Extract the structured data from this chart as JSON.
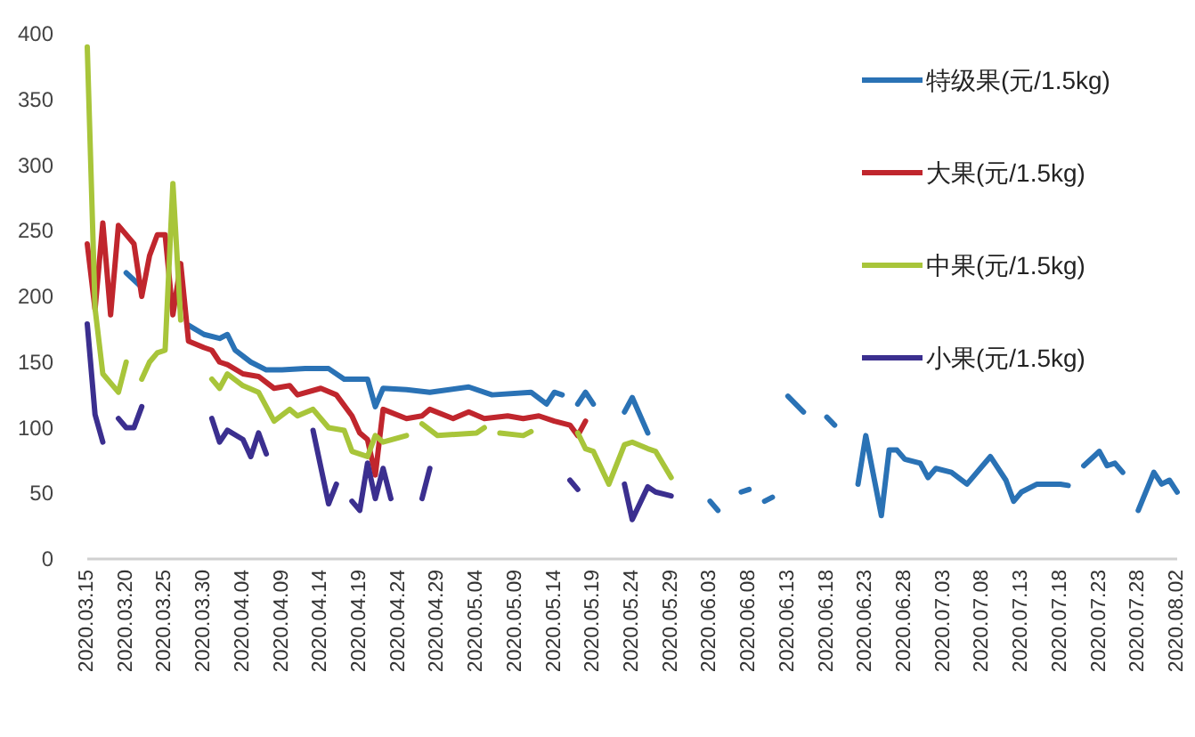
{
  "chart_data": {
    "type": "line",
    "xlim": [
      "2020-03-15",
      "2020-08-02"
    ],
    "xticks": [
      {
        "value": "2020-03-15",
        "label": "2020.03.15"
      },
      {
        "value": "2020-03-20",
        "label": "2020.03.20"
      },
      {
        "value": "2020-03-25",
        "label": "2020.03.25"
      },
      {
        "value": "2020-03-30",
        "label": "2020.03.30"
      },
      {
        "value": "2020-04-04",
        "label": "2020.04.04"
      },
      {
        "value": "2020-04-09",
        "label": "2020.04.09"
      },
      {
        "value": "2020-04-14",
        "label": "2020.04.14"
      },
      {
        "value": "2020-04-19",
        "label": "2020.04.19"
      },
      {
        "value": "2020-04-24",
        "label": "2020.04.24"
      },
      {
        "value": "2020-04-29",
        "label": "2020.04.29"
      },
      {
        "value": "2020-05-04",
        "label": "2020.05.04"
      },
      {
        "value": "2020-05-09",
        "label": "2020.05.09"
      },
      {
        "value": "2020-05-14",
        "label": "2020.05.14"
      },
      {
        "value": "2020-05-19",
        "label": "2020.05.19"
      },
      {
        "value": "2020-05-24",
        "label": "2020.05.24"
      },
      {
        "value": "2020-05-29",
        "label": "2020.05.29"
      },
      {
        "value": "2020-06-03",
        "label": "2020.06.03"
      },
      {
        "value": "2020-06-08",
        "label": "2020.06.08"
      },
      {
        "value": "2020-06-13",
        "label": "2020.06.13"
      },
      {
        "value": "2020-06-18",
        "label": "2020.06.18"
      },
      {
        "value": "2020-06-23",
        "label": "2020.06.23"
      },
      {
        "value": "2020-06-28",
        "label": "2020.06.28"
      },
      {
        "value": "2020-07-03",
        "label": "2020.07.03"
      },
      {
        "value": "2020-07-08",
        "label": "2020.07.08"
      },
      {
        "value": "2020-07-13",
        "label": "2020.07.13"
      },
      {
        "value": "2020-07-18",
        "label": "2020.07.18"
      },
      {
        "value": "2020-07-23",
        "label": "2020.07.23"
      },
      {
        "value": "2020-07-28",
        "label": "2020.07.28"
      },
      {
        "value": "2020-08-02",
        "label": "2020.08.02"
      }
    ],
    "ylim": [
      0,
      400
    ],
    "yticks": [
      0,
      50,
      100,
      150,
      200,
      250,
      300,
      350,
      400
    ],
    "legend": "top right",
    "series": [
      {
        "name": "特级果(元/1.5kg)",
        "color": "#2a72b5",
        "x": [
          "2020-03-20",
          "2020-03-22",
          "2020-03-25",
          "2020-03-28",
          "2020-03-30",
          "2020-04-01",
          "2020-04-02",
          "2020-04-03",
          "2020-04-05",
          "2020-04-07",
          "2020-04-09",
          "2020-04-12",
          "2020-04-15",
          "2020-04-17",
          "2020-04-20",
          "2020-04-21",
          "2020-04-22",
          "2020-04-25",
          "2020-04-28",
          "2020-05-03",
          "2020-05-06",
          "2020-05-11",
          "2020-05-13",
          "2020-05-14",
          "2020-05-15",
          "2020-05-16",
          "2020-05-17",
          "2020-05-18",
          "2020-05-19",
          "2020-05-21",
          "2020-05-23",
          "2020-05-24",
          "2020-05-26",
          "2020-05-30",
          "2020-06-03",
          "2020-06-04",
          "2020-06-05",
          "2020-06-07",
          "2020-06-08",
          "2020-06-09",
          "2020-06-10",
          "2020-06-11",
          "2020-06-12",
          "2020-06-13",
          "2020-06-15",
          "2020-06-16",
          "2020-06-18",
          "2020-06-19",
          "2020-06-21",
          "2020-06-22",
          "2020-06-23",
          "2020-06-25",
          "2020-06-26",
          "2020-06-27",
          "2020-06-28",
          "2020-06-30",
          "2020-07-01",
          "2020-07-02",
          "2020-07-04",
          "2020-07-06",
          "2020-07-08",
          "2020-07-09",
          "2020-07-11",
          "2020-07-12",
          "2020-07-13",
          "2020-07-15",
          "2020-07-18",
          "2020-07-19",
          "2020-07-20",
          "2020-07-21",
          "2020-07-23",
          "2020-07-24",
          "2020-07-25",
          "2020-07-26",
          "2020-07-27",
          "2020-07-28",
          "2020-07-30",
          "2020-07-31",
          "2020-08-01",
          "2020-08-02"
        ],
        "values": [
          218,
          207,
          null,
          178,
          171,
          168,
          171,
          159,
          150,
          144,
          144,
          145,
          145,
          137,
          137,
          116,
          130,
          129,
          127,
          131,
          125,
          127,
          118,
          127,
          125,
          null,
          118,
          127,
          118,
          null,
          112,
          123,
          96,
          null,
          44,
          37,
          null,
          51,
          53,
          null,
          44,
          47,
          null,
          124,
          112,
          null,
          108,
          102,
          null,
          57,
          94,
          33,
          83,
          83,
          76,
          73,
          62,
          69,
          66,
          57,
          71,
          78,
          60,
          44,
          51,
          57,
          57,
          56,
          null,
          71,
          82,
          71,
          73,
          66,
          null,
          37,
          66,
          57,
          60,
          51
        ]
      },
      {
        "name": "大果(元/1.5kg)",
        "color": "#c0262d",
        "x": [
          "2020-03-15",
          "2020-03-16",
          "2020-03-17",
          "2020-03-18",
          "2020-03-19",
          "2020-03-20",
          "2020-03-21",
          "2020-03-22",
          "2020-03-23",
          "2020-03-24",
          "2020-03-25",
          "2020-03-26",
          "2020-03-27",
          "2020-03-28",
          "2020-03-30",
          "2020-03-31",
          "2020-04-01",
          "2020-04-02",
          "2020-04-04",
          "2020-04-06",
          "2020-04-08",
          "2020-04-10",
          "2020-04-11",
          "2020-04-14",
          "2020-04-16",
          "2020-04-18",
          "2020-04-19",
          "2020-04-20",
          "2020-04-21",
          "2020-04-22",
          "2020-04-25",
          "2020-04-27",
          "2020-04-28",
          "2020-05-01",
          "2020-05-03",
          "2020-05-05",
          "2020-05-08",
          "2020-05-10",
          "2020-05-12",
          "2020-05-14",
          "2020-05-16",
          "2020-05-17",
          "2020-05-18"
        ],
        "values": [
          240,
          190,
          256,
          186,
          254,
          247,
          240,
          200,
          231,
          247,
          247,
          186,
          225,
          166,
          161,
          159,
          150,
          148,
          141,
          139,
          130,
          132,
          125,
          130,
          125,
          109,
          96,
          91,
          64,
          114,
          107,
          109,
          114,
          107,
          112,
          107,
          109,
          107,
          109,
          105,
          102,
          94,
          105
        ]
      },
      {
        "name": "中果(元/1.5kg)",
        "color": "#a8c53a",
        "x": [
          "2020-03-15",
          "2020-03-16",
          "2020-03-17",
          "2020-03-19",
          "2020-03-20",
          "2020-03-21",
          "2020-03-22",
          "2020-03-23",
          "2020-03-24",
          "2020-03-25",
          "2020-03-26",
          "2020-03-27",
          "2020-03-29",
          "2020-03-31",
          "2020-04-01",
          "2020-04-02",
          "2020-04-04",
          "2020-04-06",
          "2020-04-08",
          "2020-04-10",
          "2020-04-11",
          "2020-04-13",
          "2020-04-15",
          "2020-04-17",
          "2020-04-18",
          "2020-04-20",
          "2020-04-21",
          "2020-04-22",
          "2020-04-25",
          "2020-04-26",
          "2020-04-27",
          "2020-04-29",
          "2020-05-04",
          "2020-05-05",
          "2020-05-06",
          "2020-05-07",
          "2020-05-10",
          "2020-05-11",
          "2020-05-14",
          "2020-05-17",
          "2020-05-18",
          "2020-05-19",
          "2020-05-21",
          "2020-05-23",
          "2020-05-24",
          "2020-05-26",
          "2020-05-27",
          "2020-05-29"
        ],
        "values": [
          390,
          191,
          141,
          127,
          150,
          null,
          137,
          150,
          157,
          159,
          286,
          182,
          null,
          137,
          130,
          141,
          132,
          127,
          105,
          114,
          109,
          114,
          100,
          98,
          82,
          78,
          94,
          89,
          94,
          null,
          103,
          94,
          96,
          100,
          null,
          96,
          94,
          97,
          null,
          96,
          84,
          82,
          57,
          87,
          89,
          84,
          82,
          62
        ]
      },
      {
        "name": "小果(元/1.5kg)",
        "color": "#3b2f8f",
        "x": [
          "2020-03-15",
          "2020-03-16",
          "2020-03-17",
          "2020-03-18",
          "2020-03-19",
          "2020-03-20",
          "2020-03-21",
          "2020-03-22",
          "2020-03-25",
          "2020-03-31",
          "2020-04-01",
          "2020-04-02",
          "2020-04-04",
          "2020-04-05",
          "2020-04-06",
          "2020-04-07",
          "2020-04-10",
          "2020-04-13",
          "2020-04-15",
          "2020-04-16",
          "2020-04-17",
          "2020-04-18",
          "2020-04-19",
          "2020-04-20",
          "2020-04-21",
          "2020-04-22",
          "2020-04-23",
          "2020-04-25",
          "2020-04-27",
          "2020-04-28",
          "2020-05-04",
          "2020-05-16",
          "2020-05-17",
          "2020-05-20",
          "2020-05-23",
          "2020-05-24",
          "2020-05-26",
          "2020-05-27",
          "2020-05-29"
        ],
        "values": [
          179,
          110,
          89,
          null,
          107,
          100,
          100,
          116,
          null,
          107,
          89,
          98,
          91,
          78,
          96,
          80,
          null,
          98,
          42,
          57,
          null,
          44,
          37,
          73,
          46,
          69,
          46,
          null,
          46,
          69,
          null,
          60,
          53,
          null,
          57,
          30,
          55,
          51,
          48
        ]
      }
    ]
  }
}
